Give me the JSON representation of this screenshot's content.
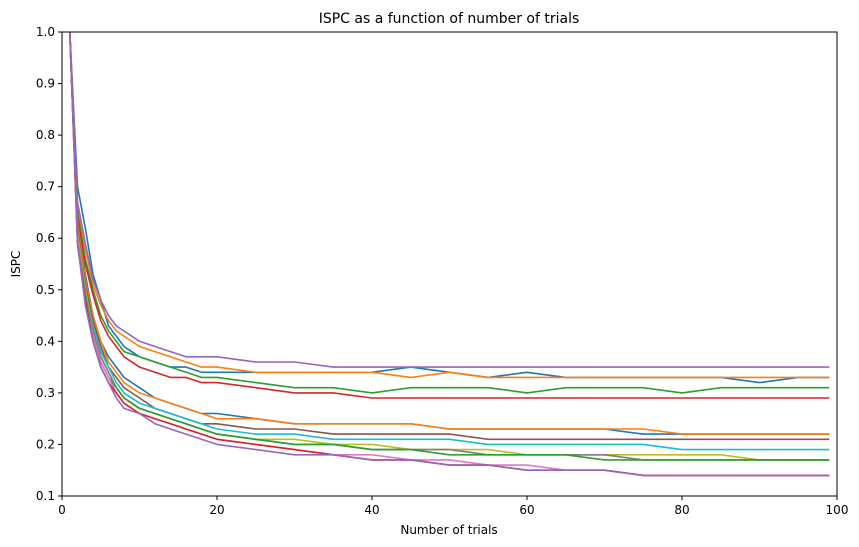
{
  "chart_data": {
    "type": "line",
    "title": "ISPC as a function of number of trials",
    "xlabel": "Number of trials",
    "ylabel": "ISPC",
    "xlim": [
      0,
      100
    ],
    "ylim": [
      0.1,
      1.0
    ],
    "xticks": [
      0,
      20,
      40,
      60,
      80,
      100
    ],
    "yticks": [
      0.1,
      0.2,
      0.3,
      0.4,
      0.5,
      0.6,
      0.7,
      0.8,
      0.9,
      1.0
    ],
    "xtick_labels": [
      "0",
      "20",
      "40",
      "60",
      "80",
      "100"
    ],
    "ytick_labels": [
      "0.1",
      "0.2",
      "0.3",
      "0.4",
      "0.5",
      "0.6",
      "0.7",
      "0.8",
      "0.9",
      "1.0"
    ],
    "grid": false,
    "legend": "none",
    "x": [
      1,
      2,
      3,
      4,
      5,
      6,
      7,
      8,
      10,
      12,
      14,
      16,
      18,
      20,
      25,
      30,
      35,
      40,
      45,
      50,
      55,
      60,
      65,
      70,
      75,
      80,
      85,
      90,
      95,
      99
    ],
    "series": [
      {
        "color": "#1f77b4",
        "values": [
          1.0,
          0.7,
          0.62,
          0.53,
          0.48,
          0.43,
          0.41,
          0.39,
          0.37,
          0.36,
          0.35,
          0.35,
          0.34,
          0.34,
          0.34,
          0.34,
          0.34,
          0.34,
          0.35,
          0.34,
          0.33,
          0.34,
          0.33,
          0.33,
          0.33,
          0.33,
          0.33,
          0.32,
          0.33,
          0.33
        ]
      },
      {
        "color": "#ff7f0e",
        "values": [
          1.0,
          0.66,
          0.58,
          0.51,
          0.47,
          0.44,
          0.42,
          0.41,
          0.39,
          0.38,
          0.37,
          0.36,
          0.35,
          0.35,
          0.34,
          0.34,
          0.34,
          0.34,
          0.33,
          0.34,
          0.33,
          0.33,
          0.33,
          0.33,
          0.33,
          0.33,
          0.33,
          0.33,
          0.33,
          0.33
        ]
      },
      {
        "color": "#2ca02c",
        "values": [
          1.0,
          0.65,
          0.56,
          0.5,
          0.45,
          0.42,
          0.4,
          0.38,
          0.37,
          0.36,
          0.35,
          0.34,
          0.33,
          0.33,
          0.32,
          0.31,
          0.31,
          0.3,
          0.31,
          0.31,
          0.31,
          0.3,
          0.31,
          0.31,
          0.31,
          0.3,
          0.31,
          0.31,
          0.31,
          0.31
        ]
      },
      {
        "color": "#d62728",
        "values": [
          1.0,
          0.64,
          0.55,
          0.49,
          0.44,
          0.41,
          0.39,
          0.37,
          0.35,
          0.34,
          0.33,
          0.33,
          0.32,
          0.32,
          0.31,
          0.3,
          0.3,
          0.29,
          0.29,
          0.29,
          0.29,
          0.29,
          0.29,
          0.29,
          0.29,
          0.29,
          0.29,
          0.29,
          0.29,
          0.29
        ]
      },
      {
        "color": "#9467bd",
        "values": [
          1.0,
          0.67,
          0.59,
          0.52,
          0.48,
          0.45,
          0.43,
          0.42,
          0.4,
          0.39,
          0.38,
          0.37,
          0.37,
          0.37,
          0.36,
          0.36,
          0.35,
          0.35,
          0.35,
          0.35,
          0.35,
          0.35,
          0.35,
          0.35,
          0.35,
          0.35,
          0.35,
          0.35,
          0.35,
          0.35
        ]
      },
      {
        "color": "#1f77b4",
        "values": [
          1.0,
          0.63,
          0.53,
          0.45,
          0.4,
          0.37,
          0.35,
          0.33,
          0.31,
          0.29,
          0.28,
          0.27,
          0.26,
          0.26,
          0.25,
          0.24,
          0.24,
          0.24,
          0.24,
          0.23,
          0.23,
          0.23,
          0.23,
          0.23,
          0.22,
          0.22,
          0.22,
          0.22,
          0.22,
          0.22
        ]
      },
      {
        "color": "#ff7f0e",
        "values": [
          1.0,
          0.63,
          0.52,
          0.45,
          0.4,
          0.36,
          0.34,
          0.32,
          0.3,
          0.29,
          0.28,
          0.27,
          0.26,
          0.25,
          0.25,
          0.24,
          0.24,
          0.24,
          0.24,
          0.23,
          0.23,
          0.23,
          0.23,
          0.23,
          0.23,
          0.22,
          0.22,
          0.22,
          0.22,
          0.22
        ]
      },
      {
        "color": "#8c564b",
        "values": [
          1.0,
          0.62,
          0.51,
          0.44,
          0.39,
          0.35,
          0.33,
          0.31,
          0.29,
          0.27,
          0.26,
          0.25,
          0.24,
          0.24,
          0.23,
          0.23,
          0.22,
          0.22,
          0.22,
          0.22,
          0.21,
          0.21,
          0.21,
          0.21,
          0.21,
          0.21,
          0.21,
          0.21,
          0.21,
          0.21
        ]
      },
      {
        "color": "#17becf",
        "values": [
          1.0,
          0.61,
          0.5,
          0.43,
          0.38,
          0.35,
          0.32,
          0.3,
          0.28,
          0.27,
          0.26,
          0.25,
          0.24,
          0.23,
          0.22,
          0.22,
          0.21,
          0.21,
          0.21,
          0.21,
          0.2,
          0.2,
          0.2,
          0.2,
          0.2,
          0.19,
          0.19,
          0.19,
          0.19,
          0.19
        ]
      },
      {
        "color": "#bcbd22",
        "values": [
          1.0,
          0.61,
          0.5,
          0.42,
          0.37,
          0.34,
          0.31,
          0.29,
          0.27,
          0.26,
          0.25,
          0.24,
          0.23,
          0.22,
          0.21,
          0.21,
          0.2,
          0.2,
          0.19,
          0.19,
          0.19,
          0.18,
          0.18,
          0.18,
          0.18,
          0.18,
          0.18,
          0.17,
          0.17,
          0.17
        ]
      },
      {
        "color": "#7f7f7f",
        "values": [
          1.0,
          0.6,
          0.49,
          0.42,
          0.37,
          0.34,
          0.31,
          0.29,
          0.27,
          0.26,
          0.25,
          0.24,
          0.23,
          0.22,
          0.21,
          0.2,
          0.2,
          0.19,
          0.19,
          0.19,
          0.18,
          0.18,
          0.18,
          0.18,
          0.17,
          0.17,
          0.17,
          0.17,
          0.17,
          0.17
        ]
      },
      {
        "color": "#2ca02c",
        "values": [
          1.0,
          0.6,
          0.49,
          0.41,
          0.36,
          0.33,
          0.31,
          0.29,
          0.27,
          0.26,
          0.25,
          0.24,
          0.23,
          0.22,
          0.21,
          0.2,
          0.2,
          0.19,
          0.19,
          0.18,
          0.18,
          0.18,
          0.18,
          0.17,
          0.17,
          0.17,
          0.17,
          0.17,
          0.17,
          0.17
        ]
      },
      {
        "color": "#e377c2",
        "values": [
          1.0,
          0.6,
          0.48,
          0.41,
          0.36,
          0.33,
          0.3,
          0.28,
          0.26,
          0.25,
          0.24,
          0.23,
          0.22,
          0.21,
          0.2,
          0.19,
          0.18,
          0.18,
          0.17,
          0.17,
          0.16,
          0.16,
          0.15,
          0.15,
          0.14,
          0.14,
          0.14,
          0.14,
          0.14,
          0.14
        ]
      },
      {
        "color": "#d62728",
        "values": [
          1.0,
          0.59,
          0.48,
          0.4,
          0.35,
          0.32,
          0.3,
          0.28,
          0.26,
          0.25,
          0.24,
          0.23,
          0.22,
          0.21,
          0.2,
          0.19,
          0.18,
          0.17,
          0.17,
          0.16,
          0.16,
          0.15,
          0.15,
          0.15,
          0.14,
          0.14,
          0.14,
          0.14,
          0.14,
          0.14
        ]
      },
      {
        "color": "#9467bd",
        "values": [
          1.0,
          0.59,
          0.47,
          0.4,
          0.35,
          0.32,
          0.29,
          0.27,
          0.26,
          0.24,
          0.23,
          0.22,
          0.21,
          0.2,
          0.19,
          0.18,
          0.18,
          0.17,
          0.17,
          0.16,
          0.16,
          0.15,
          0.15,
          0.15,
          0.14,
          0.14,
          0.14,
          0.14,
          0.14,
          0.14
        ]
      }
    ]
  }
}
